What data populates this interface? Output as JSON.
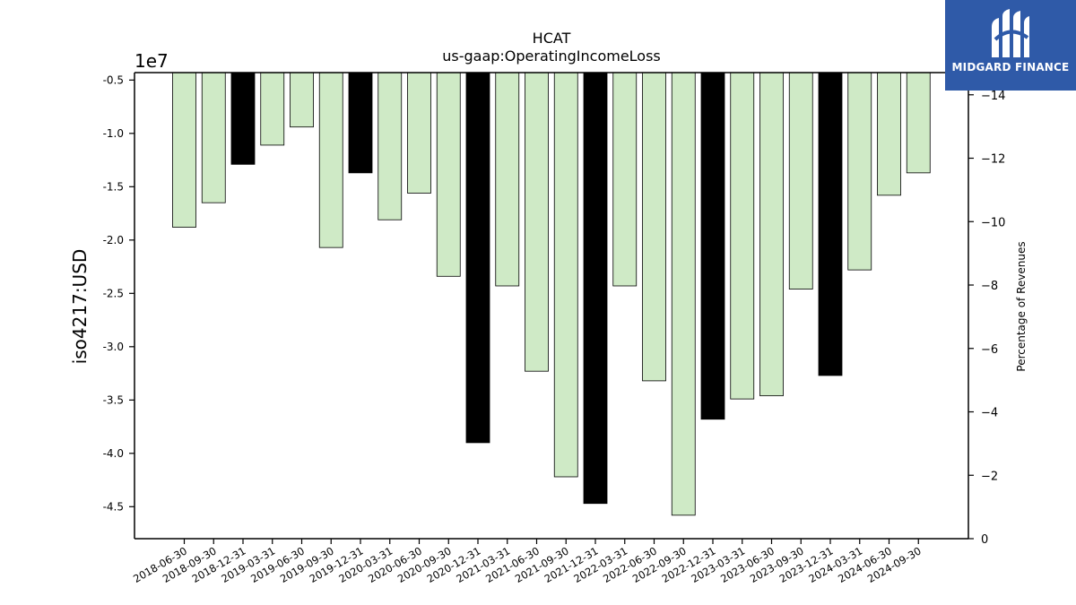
{
  "chart_data": {
    "type": "bar",
    "title": "HCAT",
    "subtitle": "us-gaap:OperatingIncomeLoss",
    "ylabel": "iso4217:USD",
    "y_multiplier": "1e7",
    "ylim": [
      -4.8,
      -0.43
    ],
    "y_ticks": [
      "-0.5",
      "-1.0",
      "-1.5",
      "-2.0",
      "-2.5",
      "-3.0",
      "-3.5",
      "-4.0",
      "-4.5"
    ],
    "y2label": "Percentage of Revenues",
    "y2lim": [
      0,
      14.7
    ],
    "y2_ticks": [
      "0",
      "−2",
      "−4",
      "−6",
      "−8",
      "−10",
      "−12",
      "−14"
    ],
    "categories": [
      "2018-06-30",
      "2018-09-30",
      "2018-12-31",
      "2019-03-31",
      "2019-06-30",
      "2019-09-30",
      "2019-12-31",
      "2020-03-31",
      "2020-06-30",
      "2020-09-30",
      "2020-12-31",
      "2021-03-31",
      "2021-06-30",
      "2021-09-30",
      "2021-12-31",
      "2022-03-31",
      "2022-06-30",
      "2022-09-30",
      "2022-12-31",
      "2023-03-31",
      "2023-06-30",
      "2023-09-30",
      "2023-12-31",
      "2024-03-31",
      "2024-06-30",
      "2024-09-30"
    ],
    "values": [
      -1.88,
      -1.65,
      -1.29,
      -1.11,
      -0.94,
      -2.07,
      -1.37,
      -1.81,
      -1.56,
      -2.34,
      -3.9,
      -2.43,
      -3.23,
      -4.22,
      -4.47,
      -2.43,
      -3.32,
      -4.58,
      -3.68,
      -3.49,
      -3.46,
      -2.46,
      -3.27,
      -2.28,
      -1.58,
      -1.37
    ],
    "annual": [
      false,
      false,
      true,
      false,
      false,
      false,
      true,
      false,
      false,
      false,
      true,
      false,
      false,
      false,
      true,
      false,
      false,
      false,
      true,
      false,
      false,
      false,
      true,
      false,
      false,
      false
    ],
    "colors": {
      "quarter": "#cfeac6",
      "annual": "#000000",
      "edge": "#000000"
    }
  },
  "logo": {
    "text": "MIDGARD FINANCE",
    "color": "#2f5aa8"
  }
}
